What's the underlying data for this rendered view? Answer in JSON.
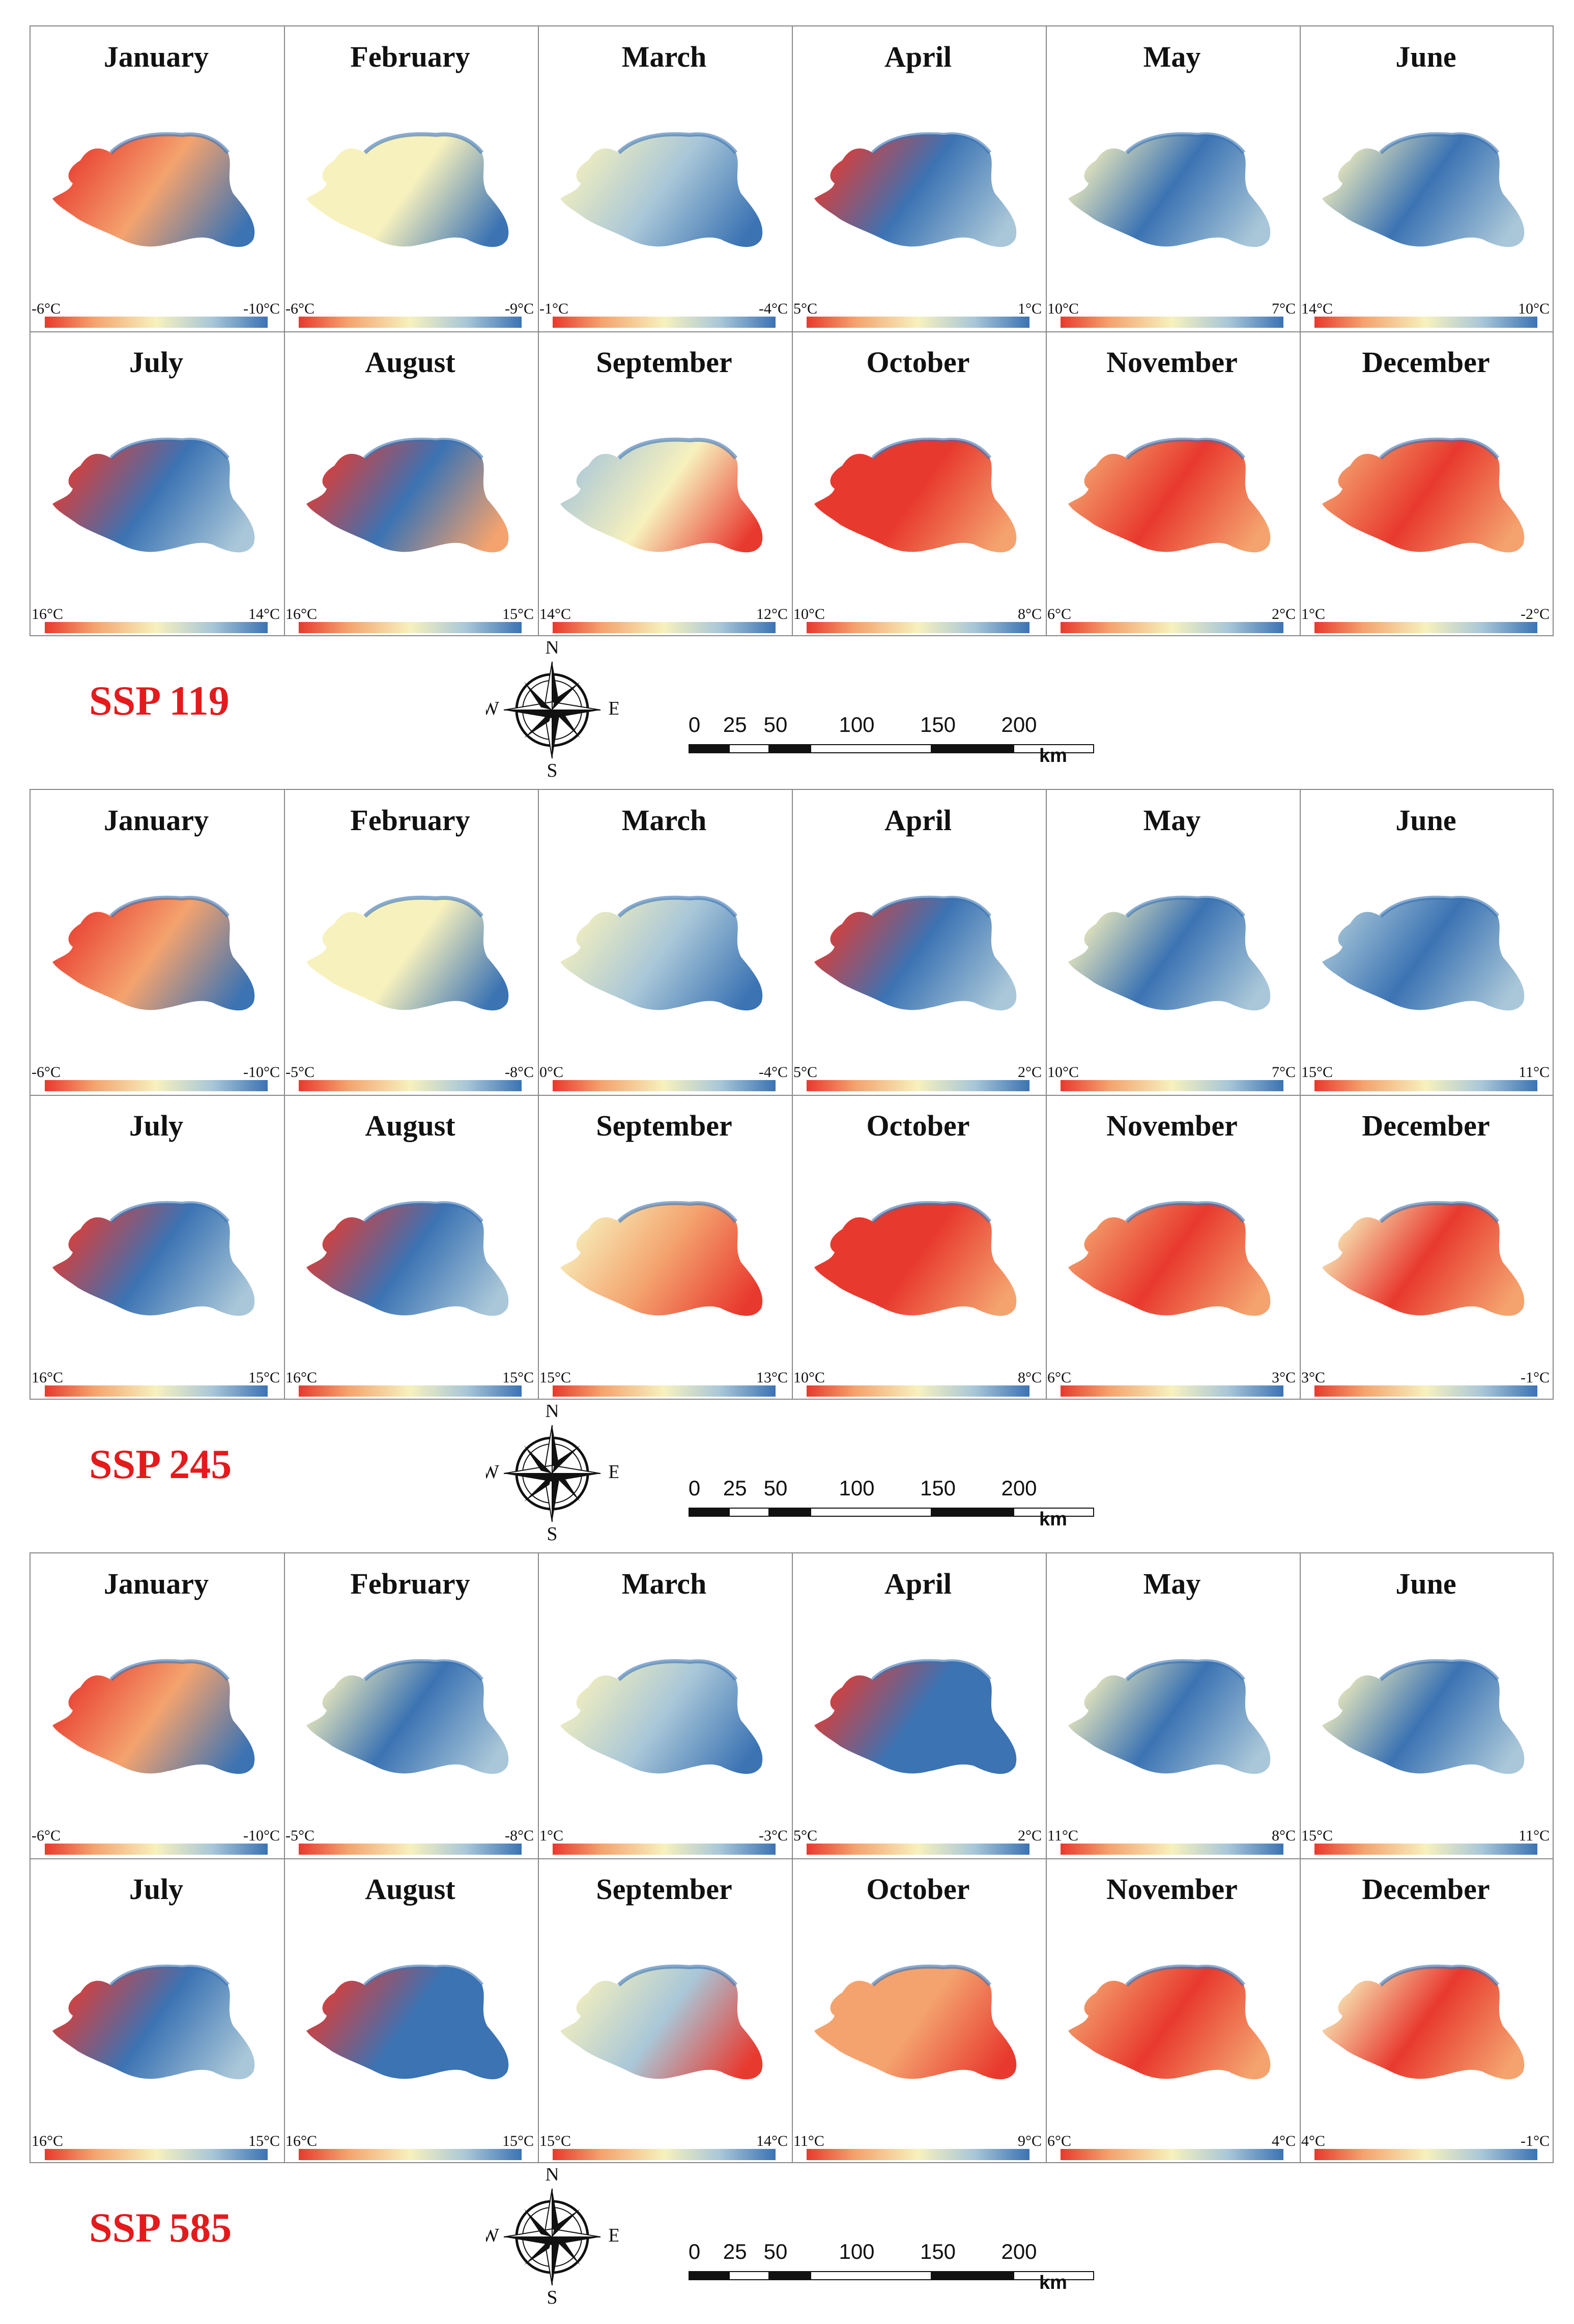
{
  "months": [
    "January",
    "February",
    "March",
    "April",
    "May",
    "June",
    "July",
    "August",
    "September",
    "October",
    "November",
    "December"
  ],
  "compass": {
    "n": "N",
    "e": "E",
    "s": "S",
    "w": "W"
  },
  "scale": {
    "ticks": [
      "0",
      "25",
      "50",
      "100",
      "150",
      "200"
    ],
    "unit": "km"
  },
  "colors": {
    "warm": "#e8392e",
    "mid": "#f7f1bd",
    "cool": "#3b73b3",
    "label": "#e41a1c"
  },
  "scenarios": [
    {
      "label": "SSP 119",
      "legends": [
        [
          "-6°C",
          "-10°C"
        ],
        [
          "-6°C",
          "-9°C"
        ],
        [
          "-1°C",
          "-4°C"
        ],
        [
          "5°C",
          "1°C"
        ],
        [
          "10°C",
          "7°C"
        ],
        [
          "14°C",
          "10°C"
        ],
        [
          "16°C",
          "14°C"
        ],
        [
          "16°C",
          "15°C"
        ],
        [
          "14°C",
          "12°C"
        ],
        [
          "10°C",
          "8°C"
        ],
        [
          "6°C",
          "2°C"
        ],
        [
          "1°C",
          "-2°C"
        ]
      ]
    },
    {
      "label": "SSP 245",
      "legends": [
        [
          "-6°C",
          "-10°C"
        ],
        [
          "-5°C",
          "-8°C"
        ],
        [
          "0°C",
          "-4°C"
        ],
        [
          "5°C",
          "2°C"
        ],
        [
          "10°C",
          "7°C"
        ],
        [
          "15°C",
          "11°C"
        ],
        [
          "16°C",
          "15°C"
        ],
        [
          "16°C",
          "15°C"
        ],
        [
          "15°C",
          "13°C"
        ],
        [
          "10°C",
          "8°C"
        ],
        [
          "6°C",
          "3°C"
        ],
        [
          "3°C",
          "-1°C"
        ]
      ]
    },
    {
      "label": "SSP 585",
      "legends": [
        [
          "-6°C",
          "-10°C"
        ],
        [
          "-5°C",
          "-8°C"
        ],
        [
          "1°C",
          "-3°C"
        ],
        [
          "5°C",
          "2°C"
        ],
        [
          "11°C",
          "8°C"
        ],
        [
          "15°C",
          "11°C"
        ],
        [
          "16°C",
          "15°C"
        ],
        [
          "16°C",
          "15°C"
        ],
        [
          "15°C",
          "14°C"
        ],
        [
          "11°C",
          "9°C"
        ],
        [
          "6°C",
          "4°C"
        ],
        [
          "4°C",
          "-1°C"
        ]
      ]
    }
  ]
}
